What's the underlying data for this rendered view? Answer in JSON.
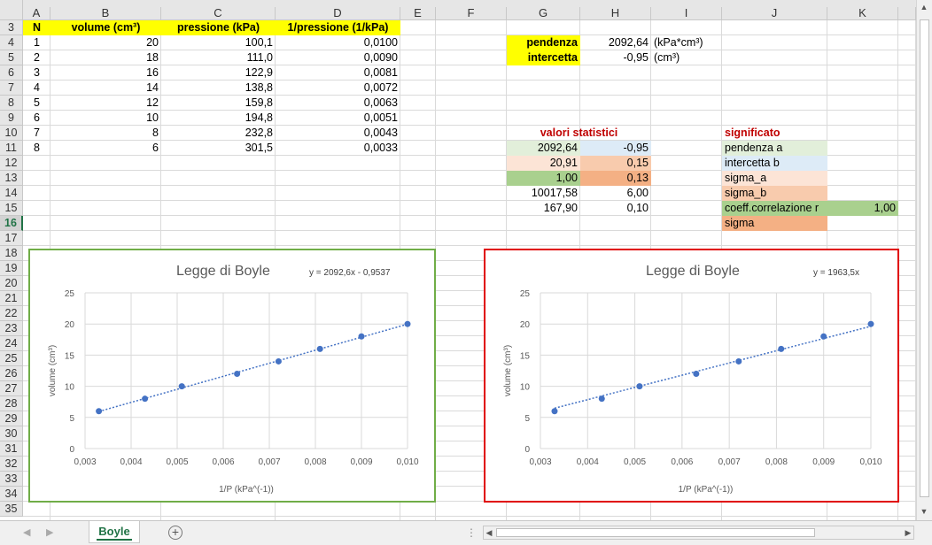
{
  "columns": [
    "A",
    "B",
    "C",
    "D",
    "E",
    "F",
    "G",
    "H",
    "I",
    "J",
    "K"
  ],
  "rows": [
    "3",
    "4",
    "5",
    "6",
    "7",
    "8",
    "9",
    "10",
    "11",
    "12",
    "13",
    "14",
    "15",
    "16",
    "17",
    "18",
    "19",
    "20",
    "21",
    "22",
    "23",
    "24",
    "25",
    "26",
    "27",
    "28",
    "29",
    "30",
    "31",
    "32",
    "33",
    "34",
    "35"
  ],
  "selected_row": "16",
  "table": {
    "headers": [
      "N",
      "volume (cm³)",
      "pressione (kPa)",
      "1/pressione (1/kPa)"
    ],
    "rows": [
      [
        "1",
        "20",
        "100,1",
        "0,0100"
      ],
      [
        "2",
        "18",
        "111,0",
        "0,0090"
      ],
      [
        "3",
        "16",
        "122,9",
        "0,0081"
      ],
      [
        "4",
        "14",
        "138,8",
        "0,0072"
      ],
      [
        "5",
        "12",
        "159,8",
        "0,0063"
      ],
      [
        "6",
        "10",
        "194,8",
        "0,0051"
      ],
      [
        "7",
        "8",
        "232,8",
        "0,0043"
      ],
      [
        "8",
        "6",
        "301,5",
        "0,0033"
      ]
    ]
  },
  "regression": {
    "slope_label": "pendenza",
    "slope_value": "2092,64",
    "slope_unit": "(kPa*cm³)",
    "intercept_label": "intercetta",
    "intercept_value": "-0,95",
    "intercept_unit": "(cm³)"
  },
  "stats": {
    "title": "valori statistici",
    "rows": [
      [
        "2092,64",
        "-0,95"
      ],
      [
        "20,91",
        "0,15"
      ],
      [
        "1,00",
        "0,13"
      ],
      [
        "10017,58",
        "6,00"
      ],
      [
        "167,90",
        "0,10"
      ]
    ]
  },
  "meaning": {
    "title": "significato",
    "items": [
      "pendenza a",
      "intercetta b",
      "sigma_a",
      "sigma_b",
      "coeff.correlazione r",
      "sigma"
    ],
    "r_value": "1,00"
  },
  "chart_data": [
    {
      "type": "scatter",
      "title": "Legge di Boyle",
      "trendline_label": "y = 2092,6x - 0,9537",
      "xlabel": "1/P (kPa^(-1))",
      "ylabel": "volume (cm³)",
      "x": [
        0.01,
        0.009,
        0.0081,
        0.0072,
        0.0063,
        0.0051,
        0.0043,
        0.0033
      ],
      "y": [
        20,
        18,
        16,
        14,
        12,
        10,
        8,
        6
      ],
      "trendline": {
        "slope": 2092.6,
        "intercept": -0.9537
      },
      "xlim": [
        0.003,
        0.01
      ],
      "ylim": [
        0,
        25
      ],
      "xticks": [
        "0,003",
        "0,004",
        "0,005",
        "0,006",
        "0,007",
        "0,008",
        "0,009",
        "0,010"
      ],
      "yticks": [
        "0",
        "5",
        "10",
        "15",
        "20",
        "25"
      ],
      "grid": true,
      "border_color": "#70ad47"
    },
    {
      "type": "scatter",
      "title": "Legge di Boyle",
      "trendline_label": "y = 1963,5x",
      "xlabel": "1/P (kPa^(-1))",
      "ylabel": "volume (cm³)",
      "x": [
        0.01,
        0.009,
        0.0081,
        0.0072,
        0.0063,
        0.0051,
        0.0043,
        0.0033
      ],
      "y": [
        20,
        18,
        16,
        14,
        12,
        10,
        8,
        6
      ],
      "trendline": {
        "slope": 1963.5,
        "intercept": 0
      },
      "xlim": [
        0.003,
        0.01
      ],
      "ylim": [
        0,
        25
      ],
      "xticks": [
        "0,003",
        "0,004",
        "0,005",
        "0,006",
        "0,007",
        "0,008",
        "0,009",
        "0,010"
      ],
      "yticks": [
        "0",
        "5",
        "10",
        "15",
        "20",
        "25"
      ],
      "grid": true,
      "border_color": "#e00000"
    }
  ],
  "colors": {
    "point": "#4472c4",
    "trendline": "#4472c4",
    "accent": "#217346"
  },
  "sheet_tabs": [
    "Boyle"
  ],
  "icons": {
    "add_sheet": "+",
    "nav_prev": "◀",
    "nav_next": "▶",
    "options": "⋮"
  }
}
